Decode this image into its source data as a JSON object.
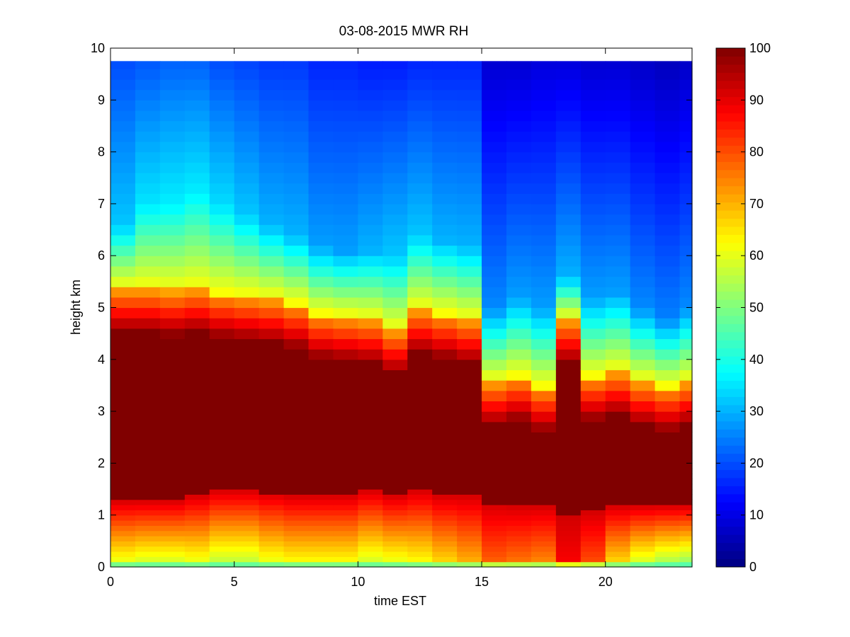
{
  "chart_data": {
    "type": "heatmap",
    "title": "03-08-2015 MWR RH",
    "xlabel": "time EST",
    "ylabel": "height km",
    "xlim": [
      0,
      23.5
    ],
    "ylim": [
      0,
      10
    ],
    "x_ticks": [
      0,
      5,
      10,
      15,
      20
    ],
    "y_ticks": [
      0,
      1,
      2,
      3,
      4,
      5,
      6,
      7,
      8,
      9,
      10
    ],
    "colorbar": {
      "range": [
        0,
        100
      ],
      "ticks": [
        0,
        10,
        20,
        30,
        40,
        50,
        60,
        70,
        80,
        90,
        100
      ],
      "colormap": "jet"
    },
    "times": [
      0,
      1,
      2,
      3,
      4,
      5,
      6,
      7,
      8,
      9,
      10,
      11,
      12,
      13,
      14,
      15,
      16,
      17,
      18,
      19,
      20,
      21,
      22,
      23
    ],
    "heights": [
      0.0,
      0.1,
      0.2,
      0.3,
      0.4,
      0.5,
      0.6,
      0.7,
      0.8,
      0.9,
      1.0,
      1.1,
      1.2,
      1.3,
      1.4,
      1.5,
      1.6,
      1.7,
      1.8,
      1.9,
      2.0,
      2.2,
      2.4,
      2.6,
      2.8,
      3.0,
      3.2,
      3.4,
      3.6,
      3.8,
      4.0,
      4.2,
      4.4,
      4.6,
      4.8,
      5.0,
      5.2,
      5.4,
      5.6,
      5.8,
      6.0,
      6.2,
      6.4,
      6.6,
      6.8,
      7.0,
      7.2,
      7.4,
      7.6,
      7.8,
      8.0,
      8.2,
      8.4,
      8.6,
      8.8,
      9.0,
      9.2,
      9.4,
      9.6,
      9.75
    ],
    "profiles": [
      {
        "t": 0,
        "top": 5.4,
        "mid": 6.6,
        "up": 32,
        "top_rh": 20,
        "bot": 1.3,
        "lo": 60
      },
      {
        "t": 1,
        "top": 5.4,
        "mid": 7.0,
        "up": 35,
        "top_rh": 21,
        "bot": 1.3,
        "lo": 58
      },
      {
        "t": 2,
        "top": 5.35,
        "mid": 7.0,
        "up": 36,
        "top_rh": 22,
        "bot": 1.3,
        "lo": 58
      },
      {
        "t": 3,
        "top": 5.4,
        "mid": 7.2,
        "up": 36,
        "top_rh": 22,
        "bot": 1.4,
        "lo": 60
      },
      {
        "t": 4,
        "top": 5.3,
        "mid": 7.0,
        "up": 34,
        "top_rh": 20,
        "bot": 1.5,
        "lo": 56
      },
      {
        "t": 5,
        "top": 5.25,
        "mid": 6.8,
        "up": 32,
        "top_rh": 19,
        "bot": 1.5,
        "lo": 56
      },
      {
        "t": 6,
        "top": 5.2,
        "mid": 6.6,
        "up": 30,
        "top_rh": 18,
        "bot": 1.45,
        "lo": 60
      },
      {
        "t": 7,
        "top": 5.1,
        "mid": 6.4,
        "up": 30,
        "top_rh": 18,
        "bot": 1.4,
        "lo": 62
      },
      {
        "t": 8,
        "top": 4.9,
        "mid": 6.2,
        "up": 28,
        "top_rh": 16,
        "bot": 1.4,
        "lo": 62
      },
      {
        "t": 9,
        "top": 4.85,
        "mid": 6.1,
        "up": 28,
        "top_rh": 16,
        "bot": 1.4,
        "lo": 62
      },
      {
        "t": 10,
        "top": 4.8,
        "mid": 6.1,
        "up": 30,
        "top_rh": 15,
        "bot": 1.5,
        "lo": 58
      },
      {
        "t": 11,
        "top": 4.6,
        "mid": 6.0,
        "up": 32,
        "top_rh": 15,
        "bot": 1.4,
        "lo": 60
      },
      {
        "t": 12,
        "top": 5.0,
        "mid": 6.4,
        "up": 32,
        "top_rh": 16,
        "bot": 1.5,
        "lo": 62
      },
      {
        "t": 13,
        "top": 4.9,
        "mid": 6.3,
        "up": 30,
        "top_rh": 16,
        "bot": 1.4,
        "lo": 66
      },
      {
        "t": 14,
        "top": 4.8,
        "mid": 6.2,
        "up": 30,
        "top_rh": 16,
        "bot": 1.4,
        "lo": 70
      },
      {
        "t": 15,
        "top": 3.6,
        "mid": 5.0,
        "up": 26,
        "top_rh": 8,
        "bot": 1.25,
        "lo": 78
      },
      {
        "t": 16,
        "top": 3.7,
        "mid": 5.2,
        "up": 28,
        "top_rh": 8,
        "bot": 1.2,
        "lo": 76
      },
      {
        "t": 17,
        "top": 3.5,
        "mid": 5.0,
        "up": 28,
        "top_rh": 9,
        "bot": 1.2,
        "lo": 74
      },
      {
        "t": 18,
        "top": 4.8,
        "mid": 5.6,
        "up": 30,
        "top_rh": 9,
        "bot": 1.0,
        "lo": 88
      },
      {
        "t": 19,
        "top": 3.7,
        "mid": 5.2,
        "up": 28,
        "top_rh": 8,
        "bot": 1.1,
        "lo": 80
      },
      {
        "t": 20,
        "top": 3.8,
        "mid": 5.3,
        "up": 28,
        "top_rh": 8,
        "bot": 1.2,
        "lo": 66
      },
      {
        "t": 21,
        "top": 3.6,
        "mid": 5.0,
        "up": 26,
        "top_rh": 7,
        "bot": 1.2,
        "lo": 58
      },
      {
        "t": 22,
        "top": 3.5,
        "mid": 4.8,
        "up": 25,
        "top_rh": 6,
        "bot": 1.2,
        "lo": 54
      },
      {
        "t": 23,
        "top": 3.6,
        "mid": 5.0,
        "up": 26,
        "top_rh": 7,
        "bot": 1.2,
        "lo": 52
      }
    ]
  }
}
